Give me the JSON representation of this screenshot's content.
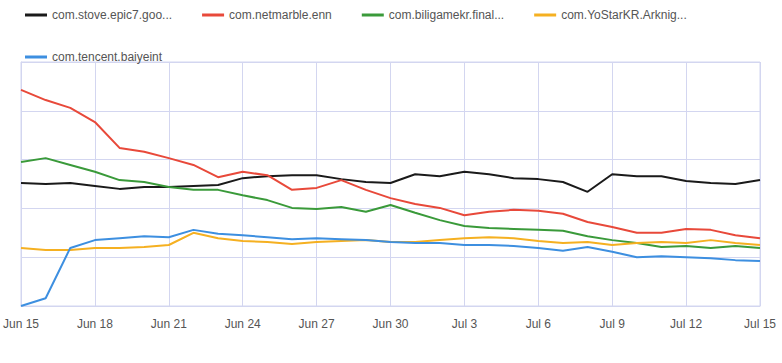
{
  "chart_data": {
    "type": "line",
    "categories": [
      "Jun 15",
      null,
      null,
      "Jun 18",
      null,
      null,
      "Jun 21",
      null,
      null,
      "Jun 24",
      null,
      null,
      "Jun 27",
      null,
      null,
      "Jun 30",
      null,
      null,
      "Jul 3",
      null,
      null,
      "Jul 6",
      null,
      null,
      "Jul 9",
      null,
      null,
      "Jul 12",
      null,
      null,
      "Jul 15"
    ],
    "series": [
      {
        "name": "com.stove.epic7.goo...",
        "color": "#1a1a1a",
        "values": [
          2.52,
          2.5,
          2.52,
          2.46,
          2.4,
          2.44,
          2.44,
          2.46,
          2.48,
          2.62,
          2.66,
          2.68,
          2.68,
          2.6,
          2.54,
          2.52,
          2.7,
          2.66,
          2.75,
          2.7,
          2.62,
          2.6,
          2.54,
          2.34,
          2.7,
          2.66,
          2.66,
          2.56,
          2.52,
          2.5,
          2.58
        ]
      },
      {
        "name": "com.netmarble.enn",
        "color": "#e8493a",
        "values": [
          4.43,
          4.22,
          4.06,
          3.77,
          3.24,
          3.16,
          3.03,
          2.89,
          2.64,
          2.75,
          2.68,
          2.38,
          2.42,
          2.58,
          2.38,
          2.21,
          2.09,
          2.01,
          1.86,
          1.93,
          1.97,
          1.95,
          1.89,
          1.72,
          1.62,
          1.5,
          1.5,
          1.58,
          1.56,
          1.45,
          1.39
        ]
      },
      {
        "name": "com.biligamekr.final...",
        "color": "#3a9a3a",
        "values": [
          2.95,
          3.03,
          2.89,
          2.75,
          2.58,
          2.54,
          2.44,
          2.38,
          2.38,
          2.27,
          2.17,
          2.01,
          1.99,
          2.03,
          1.93,
          2.07,
          1.91,
          1.76,
          1.64,
          1.6,
          1.58,
          1.56,
          1.54,
          1.43,
          1.35,
          1.29,
          1.21,
          1.23,
          1.19,
          1.23,
          1.19
        ]
      },
      {
        "name": "com.YoStarKR.Arknig...",
        "color": "#f5b021",
        "values": [
          1.19,
          1.15,
          1.15,
          1.19,
          1.19,
          1.21,
          1.25,
          1.5,
          1.39,
          1.33,
          1.31,
          1.27,
          1.31,
          1.33,
          1.35,
          1.31,
          1.31,
          1.35,
          1.39,
          1.41,
          1.39,
          1.33,
          1.29,
          1.31,
          1.25,
          1.29,
          1.31,
          1.29,
          1.35,
          1.29,
          1.25
        ]
      },
      {
        "name": "com.tencent.baiyeint",
        "color": "#3d8fe0",
        "values": [
          0,
          0.16,
          1.19,
          1.35,
          1.39,
          1.43,
          1.41,
          1.56,
          1.48,
          1.45,
          1.41,
          1.37,
          1.39,
          1.37,
          1.35,
          1.31,
          1.29,
          1.29,
          1.25,
          1.25,
          1.23,
          1.19,
          1.13,
          1.21,
          1.11,
          1.0,
          1.02,
          1.0,
          0.98,
          0.94,
          0.92
        ]
      }
    ],
    "ylim": [
      0,
      5
    ],
    "yticks": [
      0,
      1,
      2,
      3,
      4,
      5
    ],
    "grid": true,
    "legend": "top-left",
    "tick_labels": "x"
  }
}
